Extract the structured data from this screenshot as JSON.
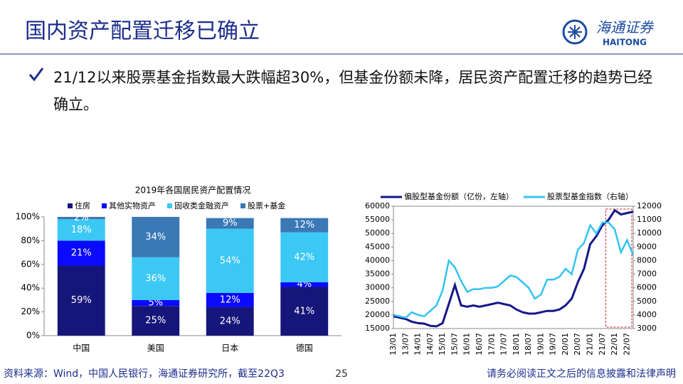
{
  "header": {
    "title": "国内资产配置迁移已确立",
    "logo_cn": "海通证券",
    "logo_en": "HAITONG"
  },
  "bullet": "21/12以来股票基金指数最大跌幅超30%，但基金份额未降，居民资产配置迁移的趋势已经确立。",
  "footer": {
    "source": "资料来源：Wind，中国人民银行，海通证券研究所，截至22Q3",
    "page": "25",
    "disclaimer": "请务必阅读正文之后的信息披露和法律声明"
  },
  "chart_data": [
    {
      "type": "stacked_bar",
      "title": "2019年各国居民资产配置情况",
      "categories": [
        "中国",
        "美国",
        "日本",
        "德国"
      ],
      "series": [
        {
          "name": "住房",
          "color": "#16167a",
          "values": [
            59,
            25,
            24,
            41
          ],
          "value_labels": [
            "59%",
            "25%",
            "24%",
            "41%"
          ]
        },
        {
          "name": "其他实物资产",
          "color": "#0a0aff",
          "values": [
            21,
            5,
            12,
            4
          ],
          "value_labels": [
            "21%",
            "5%",
            "12%",
            "4%"
          ]
        },
        {
          "name": "固收类金融资产",
          "color": "#3cc8f4",
          "values": [
            18,
            36,
            54,
            42
          ],
          "value_labels": [
            "18%",
            "36%",
            "54%",
            "42%"
          ]
        },
        {
          "name": "股票+基金",
          "color": "#3a78b6",
          "values": [
            2,
            34,
            9,
            12
          ],
          "value_labels": [
            "2%",
            "34%",
            "9%",
            "12%"
          ]
        }
      ],
      "ylim": [
        0,
        100
      ],
      "yticks": [
        {
          "value": 0,
          "label": "0%"
        },
        {
          "value": 20,
          "label": "20%"
        },
        {
          "value": 40,
          "label": "40%"
        },
        {
          "value": 60,
          "label": "60%"
        },
        {
          "value": 80,
          "label": "80%"
        },
        {
          "value": 100,
          "label": "100%"
        }
      ],
      "legend": "top"
    },
    {
      "type": "line",
      "categories": [
        "13/01",
        null,
        "13/07",
        null,
        "14/01",
        null,
        "14/07",
        null,
        "15/01",
        null,
        "15/07",
        null,
        "16/01",
        null,
        "16/07",
        null,
        "17/01",
        null,
        "17/07",
        null,
        "18/01",
        null,
        "18/07",
        null,
        "19/01",
        null,
        "19/07",
        null,
        "20/01",
        null,
        "20/07",
        null,
        "21/01",
        null,
        "21/07",
        null,
        "22/01",
        null,
        "22/07",
        null
      ],
      "series": [
        {
          "name": "偏股型基金份额（亿份，左轴）",
          "color": "#16168c",
          "axis": "y",
          "values": [
            19500,
            19000,
            18500,
            17500,
            17000,
            16800,
            16000,
            15800,
            17000,
            24000,
            31000,
            23500,
            23000,
            23500,
            23000,
            23500,
            24000,
            24500,
            24000,
            23500,
            22000,
            21000,
            20500,
            20500,
            21000,
            21500,
            21500,
            22000,
            23500,
            26000,
            32000,
            37000,
            46000,
            49000,
            53000,
            55000,
            58500,
            57000,
            57500,
            58000
          ]
        },
        {
          "name": "股票型基金指数（右轴）",
          "color": "#33c4f2",
          "axis": "y2",
          "values": [
            4000,
            3900,
            3800,
            4200,
            4000,
            3900,
            4300,
            4700,
            5800,
            8000,
            7500,
            6500,
            5700,
            5900,
            5900,
            6000,
            6000,
            6100,
            6500,
            6900,
            6800,
            6400,
            6000,
            5200,
            5500,
            6600,
            6600,
            6800,
            7400,
            7000,
            8800,
            9300,
            10600,
            10000,
            10800,
            10800,
            10300,
            8600,
            9500,
            8400
          ]
        }
      ],
      "ylim": [
        15000,
        60000
      ],
      "yticks": [
        15000,
        20000,
        25000,
        30000,
        35000,
        40000,
        45000,
        50000,
        55000,
        60000
      ],
      "y2lim": [
        3000,
        12000
      ],
      "y2ticks": [
        3000,
        4000,
        5000,
        6000,
        7000,
        8000,
        9000,
        10000,
        11000,
        12000
      ],
      "legend": "top"
    }
  ]
}
